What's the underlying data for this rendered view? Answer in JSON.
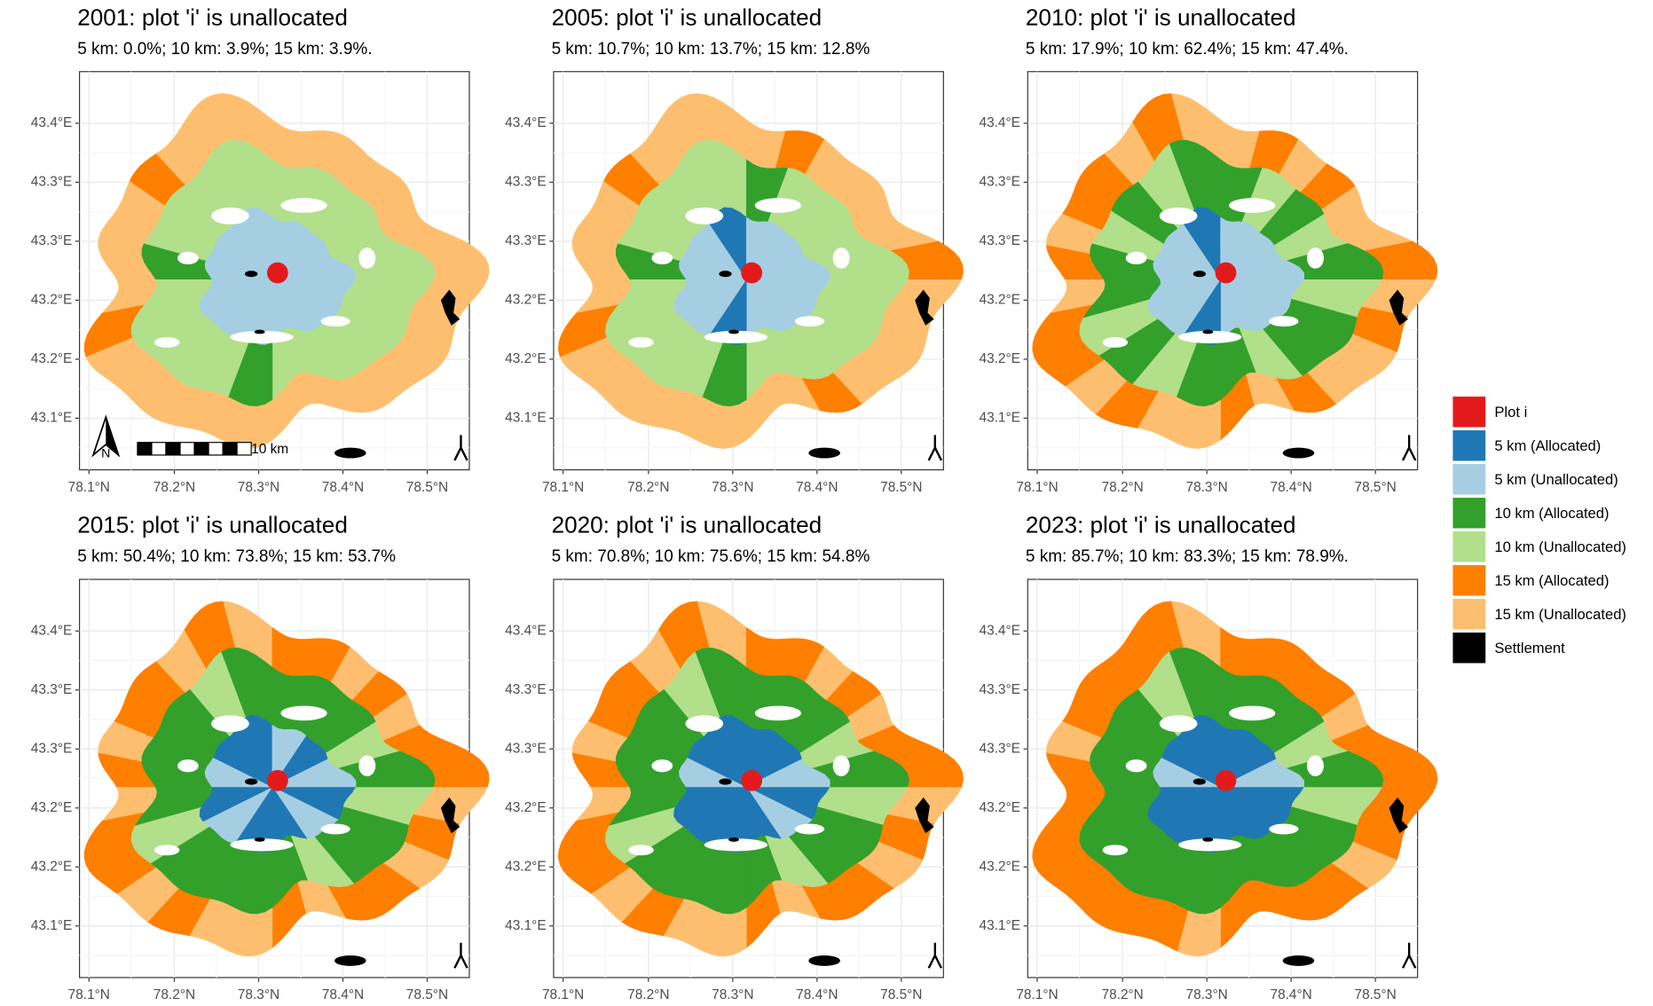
{
  "panels": [
    {
      "title": "2001: plot 'i' is unallocated",
      "subtitle": "5 km: 0.0%; 10 km: 3.9%; 15 km: 3.9%."
    },
    {
      "title": "2005: plot 'i' is unallocated",
      "subtitle": "5 km: 10.7%; 10 km: 13.7%; 15 km: 12.8%"
    },
    {
      "title": "2010: plot 'i' is unallocated",
      "subtitle": "5 km: 17.9%; 10 km: 62.4%; 15 km: 47.4%."
    },
    {
      "title": "2015: plot 'i' is unallocated",
      "subtitle": "5 km: 50.4%; 10 km: 73.8%; 15 km: 53.7%"
    },
    {
      "title": "2020: plot 'i' is unallocated",
      "subtitle": "5 km: 70.8%; 10 km: 75.6%; 15 km: 54.8%"
    },
    {
      "title": "2023: plot 'i' is unallocated",
      "subtitle": "5 km: 85.7%; 10 km: 83.3%; 15 km: 78.9%."
    }
  ],
  "axes": {
    "x_labels": [
      "78.1°N",
      "78.2°N",
      "78.3°N",
      "78.4°N",
      "78.5°N"
    ],
    "y_labels": [
      "43.4°E",
      "43.3°E",
      "43.3°E",
      "43.2°E",
      "43.2°E",
      "43.1°E"
    ]
  },
  "scale_bar": "10 km",
  "north_arrow": "N",
  "legend": [
    {
      "label": "Plot i",
      "color": "#e31a1c"
    },
    {
      "label": "5 km (Allocated)",
      "color": "#1f78b4"
    },
    {
      "label": "5 km (Unallocated)",
      "color": "#a6cee3"
    },
    {
      "label": "10 km (Allocated)",
      "color": "#33a02c"
    },
    {
      "label": "10 km (Unallocated)",
      "color": "#b2df8a"
    },
    {
      "label": "15 km (Allocated)",
      "color": "#ff7f00"
    },
    {
      "label": "15 km (Unallocated)",
      "color": "#fdbf6f"
    },
    {
      "label": "Settlement",
      "color": "#000000"
    }
  ]
}
